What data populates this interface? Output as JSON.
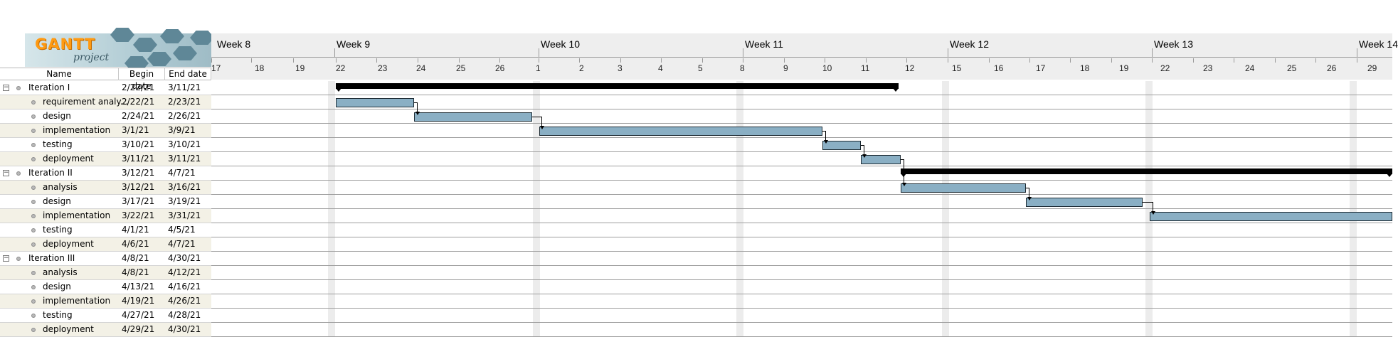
{
  "app": {
    "logo_text": "GANTT",
    "logo_subtext": "project"
  },
  "table": {
    "columns": {
      "name": "Name",
      "begin": "Begin date",
      "end": "End date"
    },
    "rows": [
      {
        "name": "Iteration I",
        "begin": "2/22/21",
        "end": "3/11/21",
        "level": 0,
        "expanded": true
      },
      {
        "name": "requirement analy...",
        "begin": "2/22/21",
        "end": "2/23/21",
        "level": 1
      },
      {
        "name": "design",
        "begin": "2/24/21",
        "end": "2/26/21",
        "level": 1
      },
      {
        "name": "implementation",
        "begin": "3/1/21",
        "end": "3/9/21",
        "level": 1
      },
      {
        "name": "testing",
        "begin": "3/10/21",
        "end": "3/10/21",
        "level": 1
      },
      {
        "name": "deployment",
        "begin": "3/11/21",
        "end": "3/11/21",
        "level": 1
      },
      {
        "name": "Iteration II",
        "begin": "3/12/21",
        "end": "4/7/21",
        "level": 0,
        "expanded": true
      },
      {
        "name": "analysis",
        "begin": "3/12/21",
        "end": "3/16/21",
        "level": 1
      },
      {
        "name": "design",
        "begin": "3/17/21",
        "end": "3/19/21",
        "level": 1
      },
      {
        "name": "implementation",
        "begin": "3/22/21",
        "end": "3/31/21",
        "level": 1
      },
      {
        "name": "testing",
        "begin": "4/1/21",
        "end": "4/5/21",
        "level": 1
      },
      {
        "name": "deployment",
        "begin": "4/6/21",
        "end": "4/7/21",
        "level": 1
      },
      {
        "name": "Iteration III",
        "begin": "4/8/21",
        "end": "4/30/21",
        "level": 0,
        "expanded": true
      },
      {
        "name": "analysis",
        "begin": "4/8/21",
        "end": "4/12/21",
        "level": 1
      },
      {
        "name": "design",
        "begin": "4/13/21",
        "end": "4/16/21",
        "level": 1
      },
      {
        "name": "implementation",
        "begin": "4/19/21",
        "end": "4/26/21",
        "level": 1
      },
      {
        "name": "testing",
        "begin": "4/27/21",
        "end": "4/28/21",
        "level": 1
      },
      {
        "name": "deployment",
        "begin": "4/29/21",
        "end": "4/30/21",
        "level": 1
      }
    ]
  },
  "timeline": {
    "weeks": [
      "Week 8",
      "Week 9",
      "Week 10",
      "Week 11",
      "Week 12",
      "Week 13",
      "Week 14"
    ],
    "days": [
      "17",
      "18",
      "19",
      "22",
      "23",
      "24",
      "25",
      "26",
      "1",
      "2",
      "3",
      "4",
      "5",
      "8",
      "9",
      "10",
      "11",
      "12",
      "15",
      "16",
      "17",
      "18",
      "19",
      "22",
      "23",
      "24",
      "25",
      "26",
      "29"
    ]
  },
  "colors": {
    "task_bar": "#8aafc4",
    "summary_bar": "#000000",
    "weekend": "#ececec",
    "alt_row": "#f3f1e6"
  }
}
